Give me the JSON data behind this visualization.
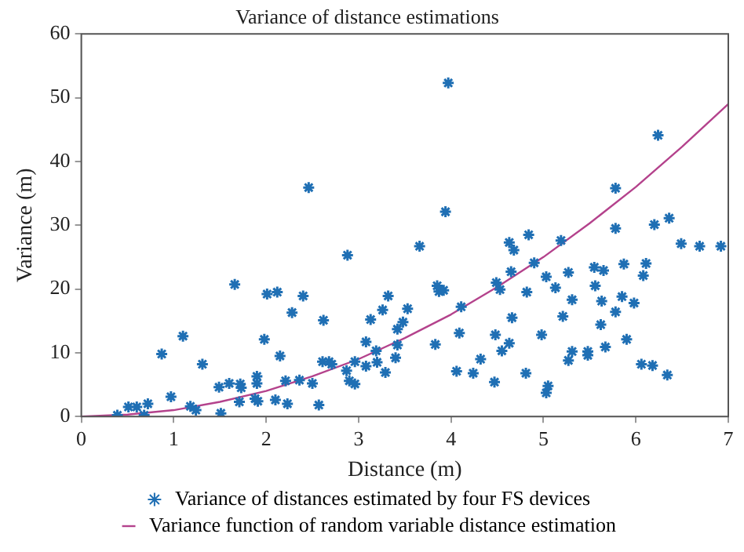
{
  "chart_data": {
    "type": "scatter",
    "title": "Variance of distance estimations",
    "xlabel": "Distance (m)",
    "ylabel": "Variance (m)",
    "xlim": [
      0,
      7
    ],
    "xticks": [
      0,
      1,
      2,
      3,
      4,
      5,
      6,
      7
    ],
    "ylim": [
      0,
      60
    ],
    "yticks": [
      0,
      10,
      20,
      30,
      40,
      50,
      60
    ],
    "grid": false,
    "legend": "bottom",
    "marker": "cross",
    "series": [
      {
        "name": "Variance of distances estimated by four FS devices",
        "color": "#1f6fb4",
        "x": [
          0.39,
          0.51,
          0.6,
          0.68,
          0.72,
          0.97,
          0.87,
          1.1,
          1.18,
          1.24,
          1.31,
          1.51,
          1.49,
          1.6,
          1.66,
          1.71,
          1.72,
          1.73,
          1.88,
          1.91,
          1.9,
          1.9,
          1.98,
          2.01,
          2.12,
          2.1,
          2.15,
          2.21,
          2.23,
          2.28,
          2.36,
          2.4,
          2.46,
          2.5,
          2.57,
          2.61,
          2.62,
          2.68,
          2.71,
          2.87,
          2.88,
          2.9,
          2.96,
          2.96,
          3.08,
          3.08,
          3.13,
          3.19,
          3.2,
          3.26,
          3.29,
          3.32,
          3.4,
          3.42,
          3.42,
          3.48,
          3.53,
          3.66,
          3.83,
          3.85,
          3.87,
          3.92,
          3.94,
          3.97,
          4.06,
          4.11,
          4.09,
          4.24,
          4.32,
          4.47,
          4.48,
          4.49,
          4.53,
          4.55,
          4.63,
          4.63,
          4.65,
          4.66,
          4.68,
          4.81,
          4.82,
          4.84,
          4.9,
          4.98,
          5.03,
          5.03,
          5.05,
          5.13,
          5.19,
          5.21,
          5.27,
          5.27,
          5.31,
          5.31,
          5.48,
          5.48,
          5.55,
          5.56,
          5.62,
          5.63,
          5.65,
          5.67,
          5.78,
          5.78,
          5.78,
          5.85,
          5.87,
          5.9,
          5.98,
          6.06,
          6.08,
          6.11,
          6.18,
          6.2,
          6.24,
          6.34,
          6.36,
          6.49,
          6.69,
          6.92
        ],
        "values": [
          0.2,
          1.5,
          1.5,
          0.2,
          2,
          3.1,
          9.8,
          12.6,
          1.6,
          1,
          8.2,
          0.5,
          4.6,
          5.2,
          20.7,
          2.3,
          5.1,
          4.5,
          2.8,
          2.4,
          5.2,
          6.3,
          12.1,
          19.2,
          19.5,
          2.6,
          9.5,
          5.6,
          2,
          16.3,
          5.7,
          18.9,
          35.9,
          5.2,
          1.8,
          8.6,
          15.1,
          8.6,
          8.2,
          7.2,
          25.3,
          5.6,
          5.1,
          8.6,
          11.7,
          7.9,
          15.2,
          10.3,
          8.5,
          16.7,
          6.9,
          18.9,
          9.2,
          11.2,
          13.7,
          14.8,
          16.9,
          26.7,
          11.3,
          20.5,
          19.6,
          19.8,
          32.1,
          52.3,
          7.1,
          17.2,
          13.1,
          6.8,
          9,
          5.4,
          12.8,
          21,
          19.9,
          10.3,
          11.5,
          27.3,
          22.7,
          15.5,
          26.1,
          6.8,
          19.5,
          28.5,
          24.1,
          12.8,
          21.9,
          3.7,
          4.8,
          20.2,
          27.6,
          15.7,
          8.8,
          22.6,
          18.3,
          10.2,
          10.2,
          9.6,
          23.4,
          20.5,
          14.4,
          18.1,
          22.9,
          10.9,
          16.4,
          35.8,
          29.5,
          18.8,
          23.9,
          12.1,
          17.8,
          8.2,
          22.1,
          24,
          8,
          30.1,
          44.1,
          6.5,
          31.1,
          27.1,
          26.7,
          26.7
        ]
      },
      {
        "name": "Variance function of random variable distance estimation",
        "color": "#b4428c",
        "type": "line",
        "marker": "none",
        "x": [
          0,
          0.5,
          1,
          1.5,
          2,
          2.5,
          3,
          3.5,
          4,
          4.5,
          5,
          5.5,
          6,
          6.5,
          7
        ],
        "values": [
          0,
          0.3,
          1,
          2.3,
          4,
          6.3,
          9,
          12.3,
          16,
          20.3,
          25,
          30.3,
          36,
          42.3,
          49
        ]
      }
    ]
  }
}
